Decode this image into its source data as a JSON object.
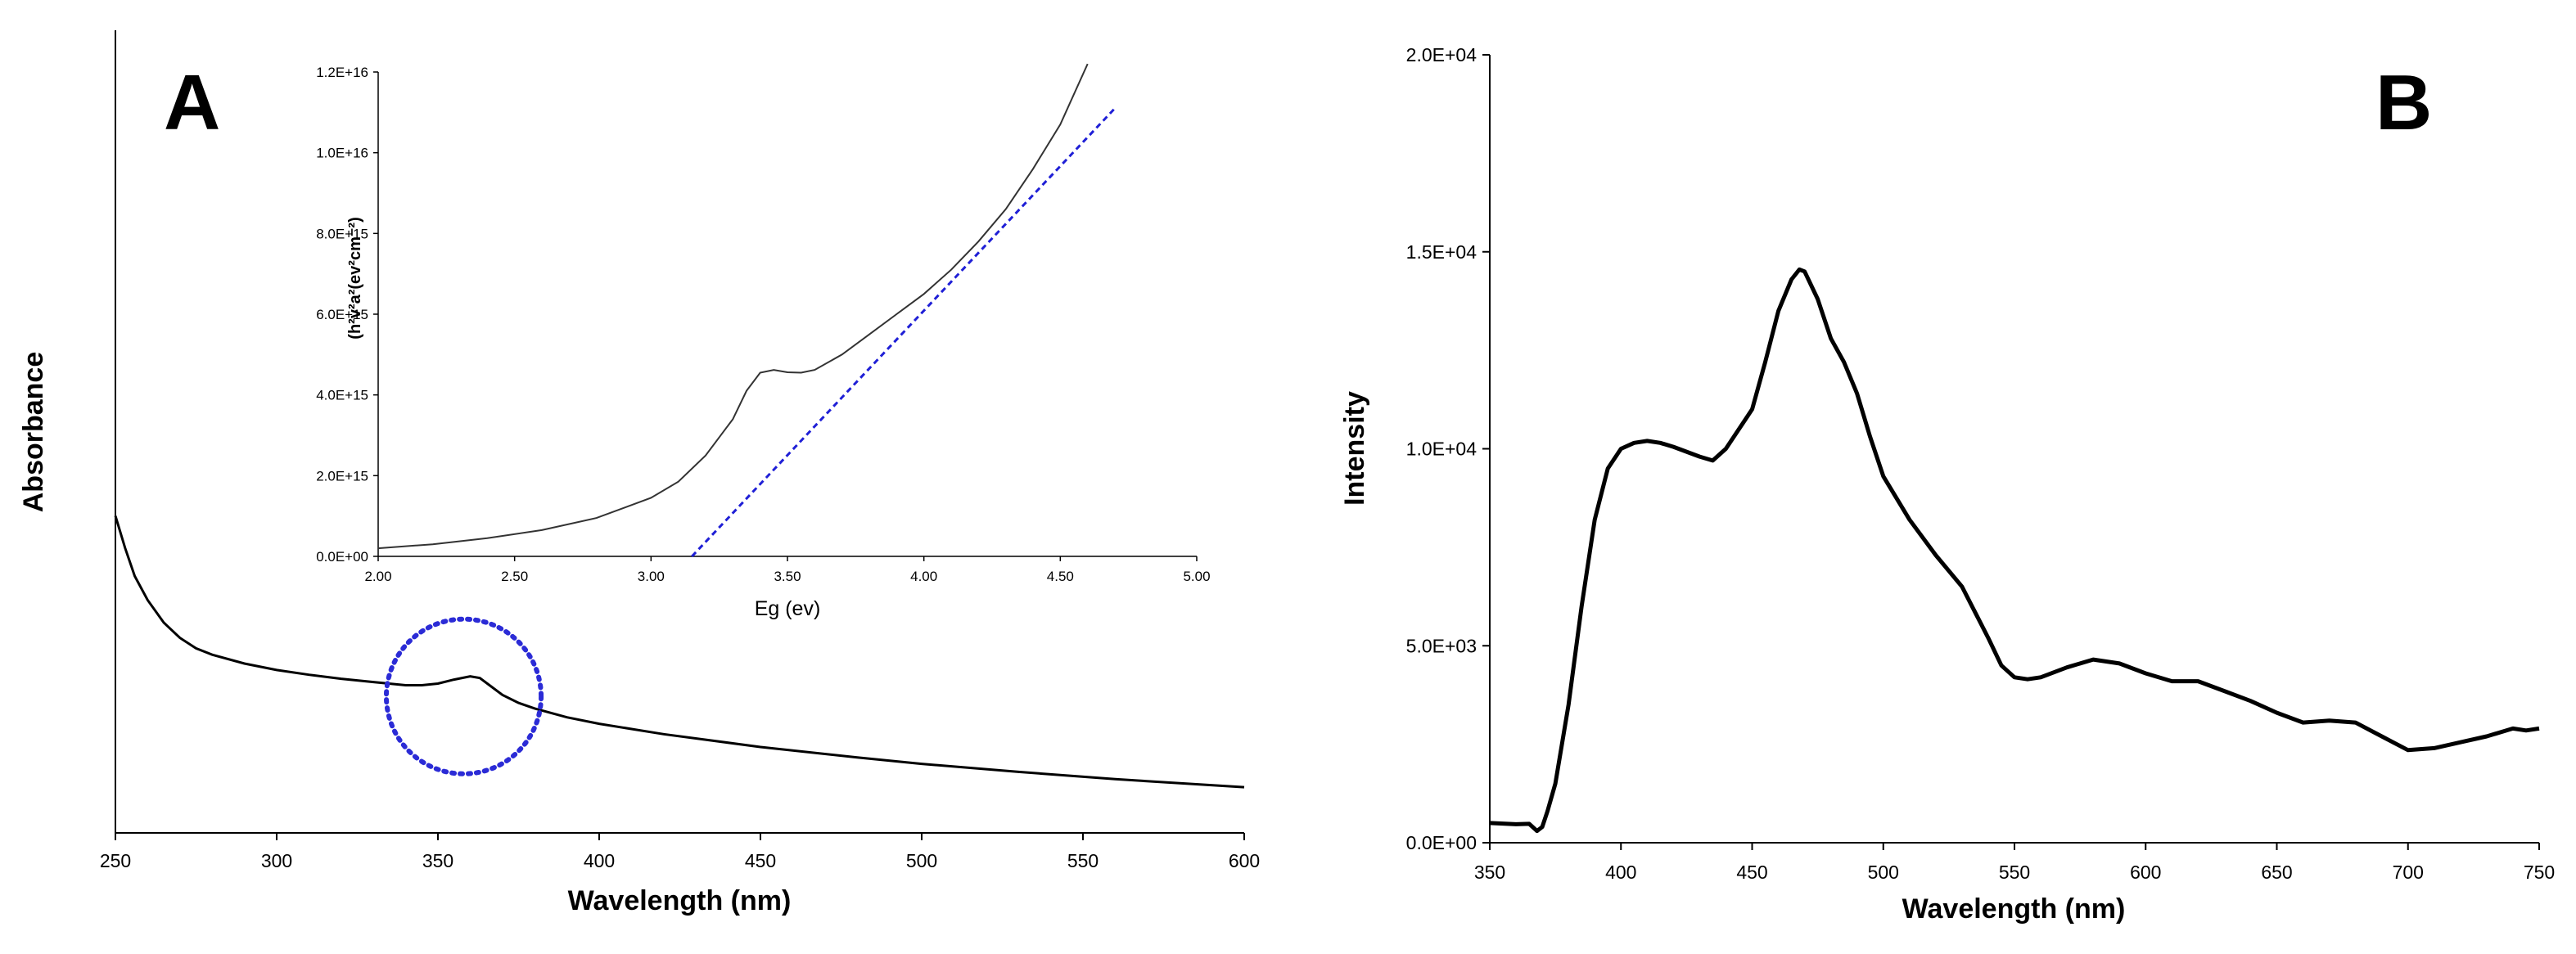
{
  "chart_data": [
    {
      "panel_label": "A",
      "type": "line",
      "title": "",
      "xlabel": "Wavelength (nm)",
      "ylabel": "Absorbance",
      "xlim": [
        250,
        600
      ],
      "x_ticks": [
        "250",
        "300",
        "350",
        "400",
        "450",
        "500",
        "550",
        "600"
      ],
      "y_tick_labels": false,
      "grid": false,
      "legend": "none",
      "ylim_relative": [
        0,
        1
      ],
      "series": [
        {
          "color": "#000000",
          "x": [
            250,
            253,
            256,
            260,
            265,
            270,
            275,
            280,
            290,
            300,
            310,
            320,
            330,
            340,
            345,
            350,
            355,
            360,
            363,
            366,
            370,
            375,
            380,
            390,
            400,
            420,
            450,
            480,
            500,
            530,
            560,
            600
          ],
          "y": [
            0.395,
            0.355,
            0.32,
            0.29,
            0.262,
            0.243,
            0.23,
            0.222,
            0.211,
            0.203,
            0.197,
            0.192,
            0.188,
            0.184,
            0.184,
            0.186,
            0.191,
            0.195,
            0.193,
            0.184,
            0.172,
            0.162,
            0.155,
            0.144,
            0.136,
            0.123,
            0.107,
            0.094,
            0.086,
            0.076,
            0.067,
            0.057
          ]
        }
      ],
      "annotation": {
        "shape": "dotted-circle",
        "color": "#2b2bd6",
        "center_x": 358,
        "center_y": 0.17,
        "radius_x": 24
      },
      "inset": {
        "type": "line",
        "xlabel": "Eg (ev)",
        "ylabel": "(h²v²a²(ev²cm⁻²)",
        "xlim": [
          2.0,
          5.0
        ],
        "ylim": [
          0,
          1.2e+16
        ],
        "x_ticks": [
          "2.00",
          "2.50",
          "3.00",
          "3.50",
          "4.00",
          "4.50",
          "5.00"
        ],
        "y_ticks": [
          "0.0E+00",
          "2.0E+15",
          "4.0E+15",
          "6.0E+15",
          "8.0E+15",
          "1.0E+16",
          "1.2E+16"
        ],
        "series": [
          {
            "color": "#333333",
            "x": [
              2.0,
              2.2,
              2.4,
              2.6,
              2.8,
              3.0,
              3.1,
              3.2,
              3.3,
              3.35,
              3.4,
              3.45,
              3.5,
              3.55,
              3.6,
              3.7,
              3.8,
              3.9,
              4.0,
              4.1,
              4.2,
              4.3,
              4.4,
              4.5,
              4.6
            ],
            "y": [
              200000000000000.0,
              300000000000000.0,
              450000000000000.0,
              650000000000000.0,
              950000000000000.0,
              1450000000000000.0,
              1850000000000000.0,
              2500000000000000.0,
              3400000000000000.0,
              4100000000000000.0,
              4550000000000000.0,
              4620000000000000.0,
              4560000000000000.0,
              4550000000000000.0,
              4620000000000000.0,
              5000000000000000.0,
              5500000000000000.0,
              6000000000000000.0,
              6500000000000000.0,
              7100000000000000.0,
              7800000000000000.0,
              8600000000000000.0,
              9600000000000000.0,
              1.07e+16,
              1.22e+16
            ]
          },
          {
            "color": "#1f1fd6",
            "style": "dashed",
            "x": [
              3.15,
              4.7
            ],
            "y": [
              0,
              1.11e+16
            ]
          }
        ]
      }
    },
    {
      "panel_label": "B",
      "type": "line",
      "title": "",
      "xlabel": "Wavelength (nm)",
      "ylabel": "Intensity",
      "xlim": [
        350,
        750
      ],
      "ylim": [
        0,
        20000
      ],
      "x_ticks": [
        "350",
        "400",
        "450",
        "500",
        "550",
        "600",
        "650",
        "700",
        "750"
      ],
      "y_ticks": [
        "0.0E+00",
        "5.0E+03",
        "1.0E+04",
        "1.5E+04",
        "2.0E+04"
      ],
      "grid": false,
      "legend": "none",
      "series": [
        {
          "color": "#000000",
          "x": [
            350,
            360,
            365,
            368,
            370,
            372,
            375,
            380,
            385,
            390,
            395,
            400,
            405,
            410,
            415,
            420,
            430,
            435,
            440,
            450,
            455,
            460,
            465,
            468,
            470,
            475,
            480,
            485,
            490,
            495,
            500,
            510,
            520,
            530,
            540,
            545,
            550,
            555,
            560,
            570,
            580,
            590,
            600,
            610,
            620,
            630,
            640,
            650,
            660,
            670,
            680,
            690,
            700,
            710,
            720,
            730,
            740,
            745,
            750
          ],
          "y": [
            500,
            470,
            480,
            300,
            400,
            800,
            1500,
            3500,
            6000,
            8200,
            9500,
            10000,
            10150,
            10200,
            10150,
            10050,
            9800,
            9700,
            10000,
            11000,
            12200,
            13500,
            14300,
            14550,
            14500,
            13800,
            12800,
            12200,
            11400,
            10300,
            9300,
            8200,
            7300,
            6500,
            5200,
            4500,
            4200,
            4150,
            4200,
            4450,
            4650,
            4550,
            4300,
            4100,
            4100,
            3850,
            3600,
            3300,
            3050,
            3100,
            3050,
            2700,
            2350,
            2400,
            2550,
            2700,
            2900,
            2850,
            2900
          ]
        }
      ]
    }
  ]
}
